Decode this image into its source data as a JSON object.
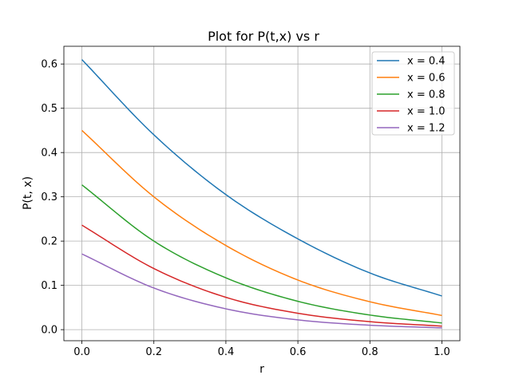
{
  "chart_data": {
    "type": "line",
    "title": "Plot for P(t,x) vs r",
    "xlabel": "r",
    "ylabel": "P(t, x)",
    "xlim": [
      -0.05,
      1.05
    ],
    "ylim": [
      -0.025,
      0.64
    ],
    "xticks": [
      0.0,
      0.2,
      0.4,
      0.6,
      0.8,
      1.0
    ],
    "xtick_labels": [
      "0.0",
      "0.2",
      "0.4",
      "0.6",
      "0.8",
      "1.0"
    ],
    "yticks": [
      0.0,
      0.1,
      0.2,
      0.3,
      0.4,
      0.5,
      0.6
    ],
    "ytick_labels": [
      "0.0",
      "0.1",
      "0.2",
      "0.3",
      "0.4",
      "0.5",
      "0.6"
    ],
    "grid": true,
    "legend_position": "top-right",
    "x": [
      0.0,
      0.2,
      0.4,
      0.6,
      0.8,
      1.0
    ],
    "series": [
      {
        "name": "x = 0.4",
        "color": "#1f77b4",
        "values": [
          0.61,
          0.44,
          0.305,
          0.205,
          0.128,
          0.076
        ]
      },
      {
        "name": "x = 0.6",
        "color": "#ff7f0e",
        "values": [
          0.45,
          0.3,
          0.19,
          0.112,
          0.063,
          0.032
        ]
      },
      {
        "name": "x = 0.8",
        "color": "#2ca02c",
        "values": [
          0.327,
          0.2,
          0.117,
          0.064,
          0.033,
          0.015
        ]
      },
      {
        "name": "x = 1.0",
        "color": "#d62728",
        "values": [
          0.236,
          0.138,
          0.073,
          0.037,
          0.018,
          0.008
        ]
      },
      {
        "name": "x = 1.2",
        "color": "#9467bd",
        "values": [
          0.171,
          0.094,
          0.047,
          0.022,
          0.01,
          0.004
        ]
      }
    ]
  }
}
